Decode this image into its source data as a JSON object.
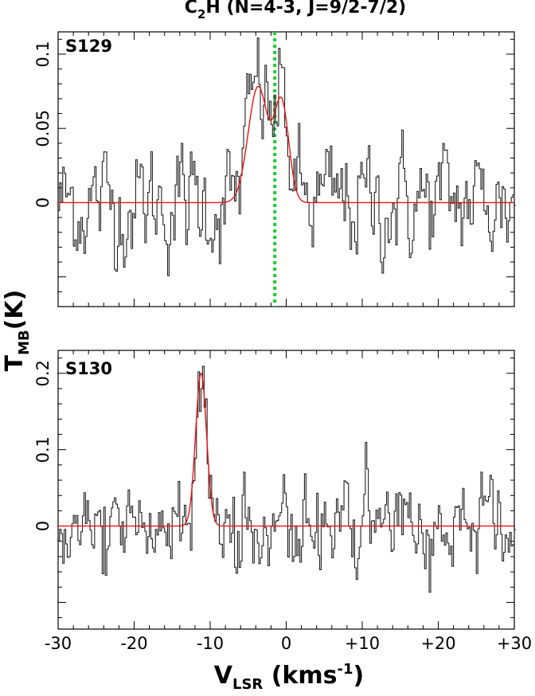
{
  "figure": {
    "title_main": "C",
    "title_sub": "2",
    "title_rest": "H (N=4-3, J=9/2-7/2)",
    "ylabel_main": "T",
    "ylabel_sub": "MB",
    "ylabel_rest": "(K)",
    "xlabel_main": "V",
    "xlabel_sub": "LSR",
    "xlabel_rest": " (kms",
    "xlabel_sup": "-1",
    "xlabel_end": ")"
  },
  "chart_data": [
    {
      "type": "line",
      "panel": "S129",
      "xlim": [
        -30,
        30
      ],
      "ylim": [
        -0.07,
        0.115
      ],
      "xticks": [
        -30,
        -20,
        -10,
        0,
        10,
        20,
        30
      ],
      "xtick_labels": [
        "-30",
        "-20",
        "-10",
        "0",
        "+10",
        "+20",
        "+30"
      ],
      "yticks": [
        0,
        0.05,
        0.1
      ],
      "ytick_labels": [
        "0",
        "0.05",
        "0.1"
      ],
      "marker_line_x": -1.5,
      "marker_line_color": "#22cc33",
      "spectrum_color": "#222222",
      "fit_color": "#ee1111",
      "fit_components": [
        {
          "center": -3.7,
          "amplitude": 0.078,
          "sigma": 1.3
        },
        {
          "center": -0.6,
          "amplitude": 0.066,
          "sigma": 0.95
        }
      ],
      "noise_rms": 0.02
    },
    {
      "type": "line",
      "panel": "S130",
      "xlim": [
        -30,
        30
      ],
      "ylim": [
        -0.135,
        0.23
      ],
      "xticks": [
        -30,
        -20,
        -10,
        0,
        10,
        20,
        30
      ],
      "xtick_labels": [
        "-30",
        "-20",
        "-10",
        "0",
        "+10",
        "+20",
        "+30"
      ],
      "yticks": [
        0,
        0.1,
        0.2
      ],
      "ytick_labels": [
        "0",
        "0.1",
        "0.2"
      ],
      "spectrum_color": "#222222",
      "fit_color": "#ee1111",
      "fit_components": [
        {
          "center": -11.2,
          "amplitude": 0.2,
          "sigma": 0.72
        }
      ],
      "noise_rms": 0.03
    }
  ]
}
